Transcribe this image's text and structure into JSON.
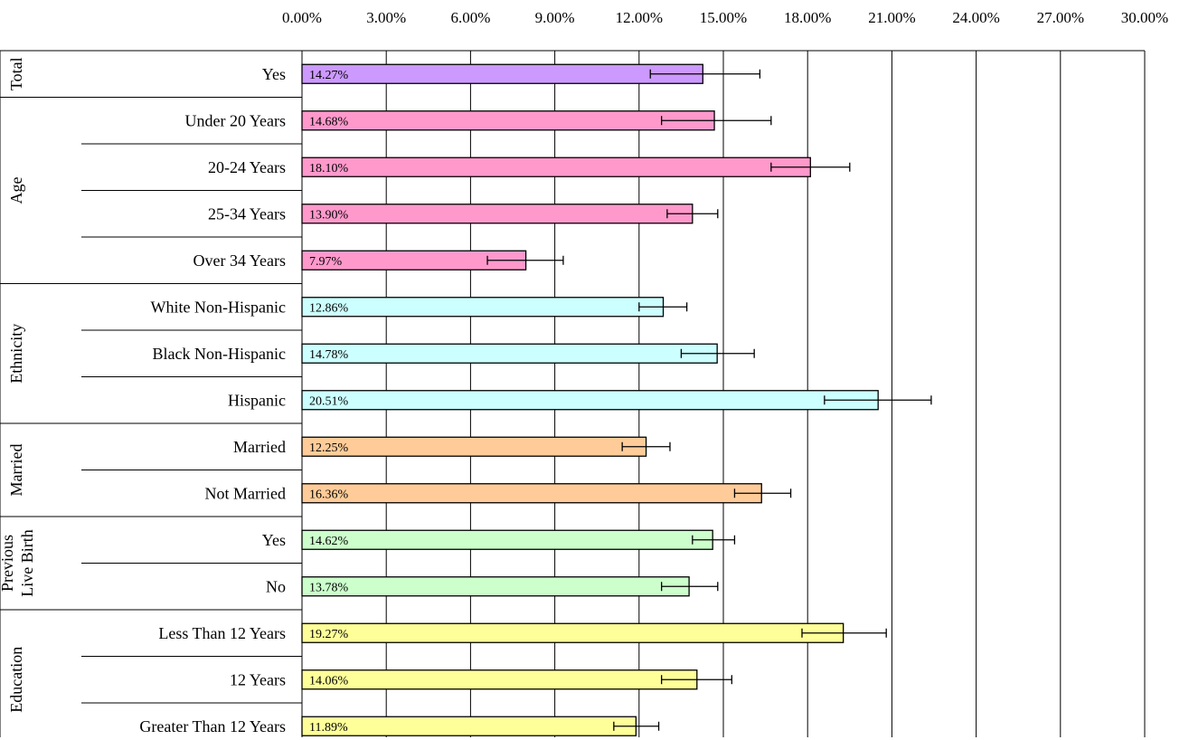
{
  "chart_data": {
    "type": "bar",
    "orientation": "horizontal",
    "title": "",
    "xlabel": "",
    "ylabel": "",
    "xlim": [
      0,
      30
    ],
    "x_ticks": [
      0,
      3,
      6,
      9,
      12,
      15,
      18,
      21,
      24,
      27,
      30
    ],
    "x_tick_labels": [
      "0.00%",
      "3.00%",
      "6.00%",
      "9.00%",
      "12.00%",
      "15.00%",
      "18.00%",
      "21.00%",
      "24.00%",
      "27.00%",
      "30.00%"
    ],
    "x_axis_position": "top",
    "grid": "vertical",
    "legend": "none",
    "groups": [
      {
        "name": "Total",
        "color": "#cc99ff",
        "rows": [
          {
            "category": "Yes",
            "value": 14.27,
            "label": "14.27%",
            "ci": [
              12.4,
              16.3
            ]
          }
        ]
      },
      {
        "name": "Age",
        "color": "#ff99cc",
        "rows": [
          {
            "category": "Under 20 Years",
            "value": 14.68,
            "label": "14.68%",
            "ci": [
              12.8,
              16.7
            ]
          },
          {
            "category": "20-24 Years",
            "value": 18.1,
            "label": "18.10%",
            "ci": [
              16.7,
              19.5
            ]
          },
          {
            "category": "25-34 Years",
            "value": 13.9,
            "label": "13.90%",
            "ci": [
              13.0,
              14.8
            ]
          },
          {
            "category": "Over 34 Years",
            "value": 7.97,
            "label": "7.97%",
            "ci": [
              6.6,
              9.3
            ]
          }
        ]
      },
      {
        "name": "Ethnicity",
        "color": "#ccffff",
        "rows": [
          {
            "category": "White Non-Hispanic",
            "value": 12.86,
            "label": "12.86%",
            "ci": [
              12.0,
              13.7
            ]
          },
          {
            "category": "Black Non-Hispanic",
            "value": 14.78,
            "label": "14.78%",
            "ci": [
              13.5,
              16.1
            ]
          },
          {
            "category": "Hispanic",
            "value": 20.51,
            "label": "20.51%",
            "ci": [
              18.6,
              22.4
            ]
          }
        ]
      },
      {
        "name": "Married",
        "color": "#ffcc99",
        "rows": [
          {
            "category": "Married",
            "value": 12.25,
            "label": "12.25%",
            "ci": [
              11.4,
              13.1
            ]
          },
          {
            "category": "Not Married",
            "value": 16.36,
            "label": "16.36%",
            "ci": [
              15.4,
              17.4
            ]
          }
        ]
      },
      {
        "name": "Previous\nLive Birth",
        "color": "#ccffcc",
        "rows": [
          {
            "category": "Yes",
            "value": 14.62,
            "label": "14.62%",
            "ci": [
              13.9,
              15.4
            ]
          },
          {
            "category": "No",
            "value": 13.78,
            "label": "13.78%",
            "ci": [
              12.8,
              14.8
            ]
          }
        ]
      },
      {
        "name": "Education",
        "color": "#ffff99",
        "rows": [
          {
            "category": "Less Than 12 Years",
            "value": 19.27,
            "label": "19.27%",
            "ci": [
              17.8,
              20.8
            ]
          },
          {
            "category": "12 Years",
            "value": 14.06,
            "label": "14.06%",
            "ci": [
              12.8,
              15.3
            ]
          },
          {
            "category": "Greater Than 12 Years",
            "value": 11.89,
            "label": "11.89%",
            "ci": [
              11.1,
              12.7
            ]
          }
        ]
      }
    ]
  }
}
